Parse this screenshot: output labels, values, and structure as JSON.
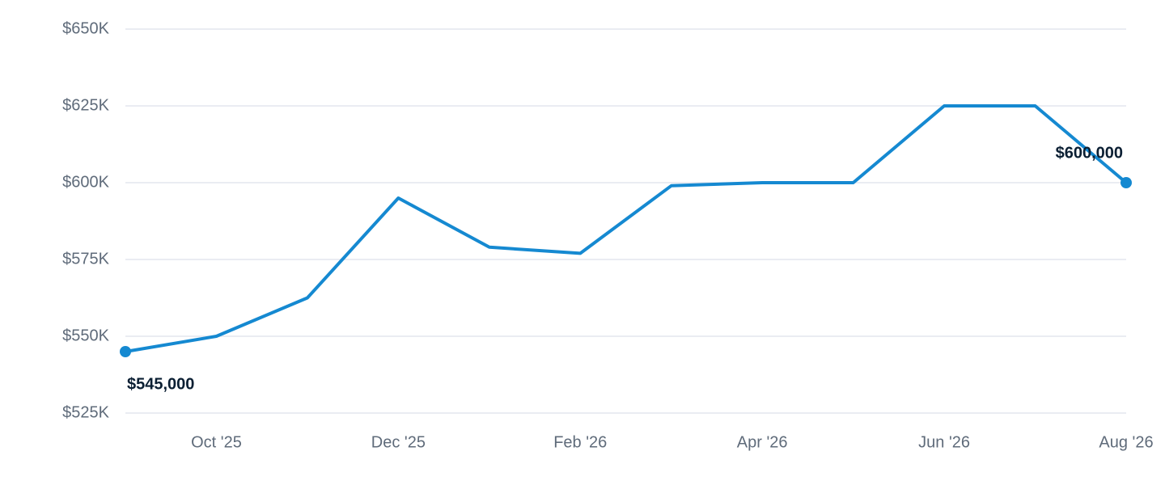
{
  "chart_data": {
    "type": "line",
    "categories": [
      null,
      "Oct '25",
      null,
      "Dec '25",
      null,
      "Feb '26",
      null,
      "Apr '26",
      null,
      "Jun '26",
      null,
      "Aug '26"
    ],
    "series": [
      {
        "color": "#1589d1",
        "values": [
          545000,
          550000,
          562500,
          595000,
          579000,
          577000,
          599000,
          600000,
          600000,
          625000,
          625000,
          600000
        ],
        "value_labels": [
          "$545,000",
          null,
          null,
          null,
          null,
          null,
          null,
          null,
          null,
          null,
          null,
          "$600,000"
        ]
      }
    ],
    "ylim": [
      525000,
      650000
    ],
    "yticks": [
      {
        "value": 525000,
        "label": "$525K"
      },
      {
        "value": 550000,
        "label": "$550K"
      },
      {
        "value": 575000,
        "label": "$575K"
      },
      {
        "value": 600000,
        "label": "$600K"
      },
      {
        "value": 625000,
        "label": "$625K"
      },
      {
        "value": 650000,
        "label": "$650K"
      }
    ],
    "grid": true
  }
}
